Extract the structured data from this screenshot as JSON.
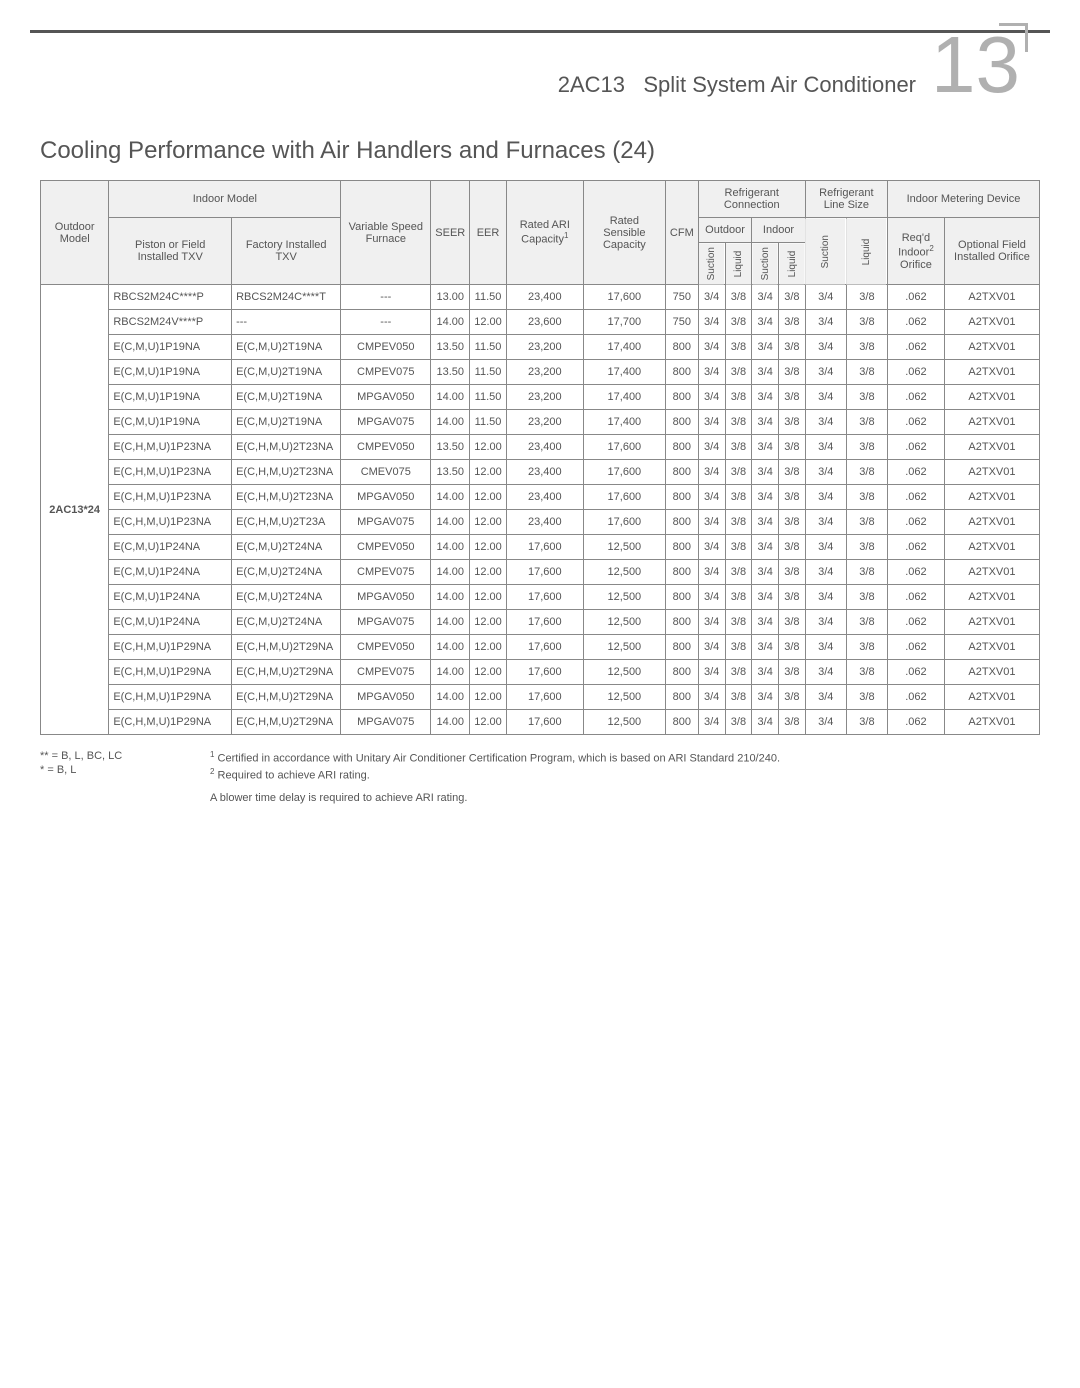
{
  "header": {
    "product_line": "2AC13",
    "product_name": "Split System Air Conditioner",
    "corner_number": "13"
  },
  "section_title": "Cooling Performance with Air Handlers and Furnaces (24)",
  "table": {
    "headers": {
      "outdoor_model": "Outdoor Model",
      "indoor_model": "Indoor Model",
      "piston_field": "Piston or Field Installed TXV",
      "factory_txv": "Factory Installed TXV",
      "var_speed": "Variable Speed Furnace",
      "seer": "SEER",
      "eer": "EER",
      "rated_ari": "Rated ARI Capacity",
      "rated_sensible": "Rated Sensible Capacity",
      "cfm": "CFM",
      "refrig_conn": "Refrigerant Connection",
      "refrig_line": "Refrigerant Line Size",
      "indoor_metering": "Indoor Metering Device",
      "outdoor": "Outdoor",
      "indoor": "Indoor",
      "suction": "Suction",
      "liquid": "Liquid",
      "reqd_orifice": "Req'd Indoor",
      "reqd_orifice2": "Orifice",
      "optional": "Optional Field Installed Orifice"
    },
    "outdoor_model_label": "2AC13*24",
    "rows": [
      {
        "c0": "RBCS2M24C****P",
        "c1": "RBCS2M24C****T",
        "c2": "---",
        "c3": "13.00",
        "c4": "11.50",
        "c5": "23,400",
        "c6": "17,600",
        "c7": "750",
        "c8": "3/4",
        "c9": "3/8",
        "c10": "3/4",
        "c11": "3/8",
        "c12": "3/4",
        "c13": "3/8",
        "c14": ".062",
        "c15": "A2TXV01"
      },
      {
        "c0": "RBCS2M24V****P",
        "c1": "---",
        "c2": "---",
        "c3": "14.00",
        "c4": "12.00",
        "c5": "23,600",
        "c6": "17,700",
        "c7": "750",
        "c8": "3/4",
        "c9": "3/8",
        "c10": "3/4",
        "c11": "3/8",
        "c12": "3/4",
        "c13": "3/8",
        "c14": ".062",
        "c15": "A2TXV01"
      },
      {
        "c0": "E(C,M,U)1P19NA",
        "c1": "E(C,M,U)2T19NA",
        "c2": "CMPEV050",
        "c3": "13.50",
        "c4": "11.50",
        "c5": "23,200",
        "c6": "17,400",
        "c7": "800",
        "c8": "3/4",
        "c9": "3/8",
        "c10": "3/4",
        "c11": "3/8",
        "c12": "3/4",
        "c13": "3/8",
        "c14": ".062",
        "c15": "A2TXV01"
      },
      {
        "c0": "E(C,M,U)1P19NA",
        "c1": "E(C,M,U)2T19NA",
        "c2": "CMPEV075",
        "c3": "13.50",
        "c4": "11.50",
        "c5": "23,200",
        "c6": "17,400",
        "c7": "800",
        "c8": "3/4",
        "c9": "3/8",
        "c10": "3/4",
        "c11": "3/8",
        "c12": "3/4",
        "c13": "3/8",
        "c14": ".062",
        "c15": "A2TXV01"
      },
      {
        "c0": "E(C,M,U)1P19NA",
        "c1": "E(C,M,U)2T19NA",
        "c2": "MPGAV050",
        "c3": "14.00",
        "c4": "11.50",
        "c5": "23,200",
        "c6": "17,400",
        "c7": "800",
        "c8": "3/4",
        "c9": "3/8",
        "c10": "3/4",
        "c11": "3/8",
        "c12": "3/4",
        "c13": "3/8",
        "c14": ".062",
        "c15": "A2TXV01"
      },
      {
        "c0": "E(C,M,U)1P19NA",
        "c1": "E(C,M,U)2T19NA",
        "c2": "MPGAV075",
        "c3": "14.00",
        "c4": "11.50",
        "c5": "23,200",
        "c6": "17,400",
        "c7": "800",
        "c8": "3/4",
        "c9": "3/8",
        "c10": "3/4",
        "c11": "3/8",
        "c12": "3/4",
        "c13": "3/8",
        "c14": ".062",
        "c15": "A2TXV01"
      },
      {
        "c0": "E(C,H,M,U)1P23NA",
        "c1": "E(C,H,M,U)2T23NA",
        "c2": "CMPEV050",
        "c3": "13.50",
        "c4": "12.00",
        "c5": "23,400",
        "c6": "17,600",
        "c7": "800",
        "c8": "3/4",
        "c9": "3/8",
        "c10": "3/4",
        "c11": "3/8",
        "c12": "3/4",
        "c13": "3/8",
        "c14": ".062",
        "c15": "A2TXV01"
      },
      {
        "c0": "E(C,H,M,U)1P23NA",
        "c1": "E(C,H,M,U)2T23NA",
        "c2": "CMEV075",
        "c3": "13.50",
        "c4": "12.00",
        "c5": "23,400",
        "c6": "17,600",
        "c7": "800",
        "c8": "3/4",
        "c9": "3/8",
        "c10": "3/4",
        "c11": "3/8",
        "c12": "3/4",
        "c13": "3/8",
        "c14": ".062",
        "c15": "A2TXV01"
      },
      {
        "c0": "E(C,H,M,U)1P23NA",
        "c1": "E(C,H,M,U)2T23NA",
        "c2": "MPGAV050",
        "c3": "14.00",
        "c4": "12.00",
        "c5": "23,400",
        "c6": "17,600",
        "c7": "800",
        "c8": "3/4",
        "c9": "3/8",
        "c10": "3/4",
        "c11": "3/8",
        "c12": "3/4",
        "c13": "3/8",
        "c14": ".062",
        "c15": "A2TXV01"
      },
      {
        "c0": "E(C,H,M,U)1P23NA",
        "c1": "E(C,H,M,U)2T23A",
        "c2": "MPGAV075",
        "c3": "14.00",
        "c4": "12.00",
        "c5": "23,400",
        "c6": "17,600",
        "c7": "800",
        "c8": "3/4",
        "c9": "3/8",
        "c10": "3/4",
        "c11": "3/8",
        "c12": "3/4",
        "c13": "3/8",
        "c14": ".062",
        "c15": "A2TXV01"
      },
      {
        "c0": "E(C,M,U)1P24NA",
        "c1": "E(C,M,U)2T24NA",
        "c2": "CMPEV050",
        "c3": "14.00",
        "c4": "12.00",
        "c5": "17,600",
        "c6": "12,500",
        "c7": "800",
        "c8": "3/4",
        "c9": "3/8",
        "c10": "3/4",
        "c11": "3/8",
        "c12": "3/4",
        "c13": "3/8",
        "c14": ".062",
        "c15": "A2TXV01"
      },
      {
        "c0": "E(C,M,U)1P24NA",
        "c1": "E(C,M,U)2T24NA",
        "c2": "CMPEV075",
        "c3": "14.00",
        "c4": "12.00",
        "c5": "17,600",
        "c6": "12,500",
        "c7": "800",
        "c8": "3/4",
        "c9": "3/8",
        "c10": "3/4",
        "c11": "3/8",
        "c12": "3/4",
        "c13": "3/8",
        "c14": ".062",
        "c15": "A2TXV01"
      },
      {
        "c0": "E(C,M,U)1P24NA",
        "c1": "E(C,M,U)2T24NA",
        "c2": "MPGAV050",
        "c3": "14.00",
        "c4": "12.00",
        "c5": "17,600",
        "c6": "12,500",
        "c7": "800",
        "c8": "3/4",
        "c9": "3/8",
        "c10": "3/4",
        "c11": "3/8",
        "c12": "3/4",
        "c13": "3/8",
        "c14": ".062",
        "c15": "A2TXV01"
      },
      {
        "c0": "E(C,M,U)1P24NA",
        "c1": "E(C,M,U)2T24NA",
        "c2": "MPGAV075",
        "c3": "14.00",
        "c4": "12.00",
        "c5": "17,600",
        "c6": "12,500",
        "c7": "800",
        "c8": "3/4",
        "c9": "3/8",
        "c10": "3/4",
        "c11": "3/8",
        "c12": "3/4",
        "c13": "3/8",
        "c14": ".062",
        "c15": "A2TXV01"
      },
      {
        "c0": "E(C,H,M,U)1P29NA",
        "c1": "E(C,H,M,U)2T29NA",
        "c2": "CMPEV050",
        "c3": "14.00",
        "c4": "12.00",
        "c5": "17,600",
        "c6": "12,500",
        "c7": "800",
        "c8": "3/4",
        "c9": "3/8",
        "c10": "3/4",
        "c11": "3/8",
        "c12": "3/4",
        "c13": "3/8",
        "c14": ".062",
        "c15": "A2TXV01"
      },
      {
        "c0": "E(C,H,M,U)1P29NA",
        "c1": "E(C,H,M,U)2T29NA",
        "c2": "CMPEV075",
        "c3": "14.00",
        "c4": "12.00",
        "c5": "17,600",
        "c6": "12,500",
        "c7": "800",
        "c8": "3/4",
        "c9": "3/8",
        "c10": "3/4",
        "c11": "3/8",
        "c12": "3/4",
        "c13": "3/8",
        "c14": ".062",
        "c15": "A2TXV01"
      },
      {
        "c0": "E(C,H,M,U)1P29NA",
        "c1": "E(C,H,M,U)2T29NA",
        "c2": "MPGAV050",
        "c3": "14.00",
        "c4": "12.00",
        "c5": "17,600",
        "c6": "12,500",
        "c7": "800",
        "c8": "3/4",
        "c9": "3/8",
        "c10": "3/4",
        "c11": "3/8",
        "c12": "3/4",
        "c13": "3/8",
        "c14": ".062",
        "c15": "A2TXV01"
      },
      {
        "c0": "E(C,H,M,U)1P29NA",
        "c1": "E(C,H,M,U)2T29NA",
        "c2": "MPGAV075",
        "c3": "14.00",
        "c4": "12.00",
        "c5": "17,600",
        "c6": "12,500",
        "c7": "800",
        "c8": "3/4",
        "c9": "3/8",
        "c10": "3/4",
        "c11": "3/8",
        "c12": "3/4",
        "c13": "3/8",
        "c14": ".062",
        "c15": "A2TXV01"
      }
    ]
  },
  "footnotes": {
    "left1": "** = B, L, BC, LC",
    "left2": "*  = B, L",
    "r1": "Certified in accordance with Unitary Air Conditioner Certification Program, which is based on ARI Standard 210/240.",
    "r2": "Required to achieve ARI rating.",
    "r3": "A blower time delay is required to achieve ARI rating."
  }
}
